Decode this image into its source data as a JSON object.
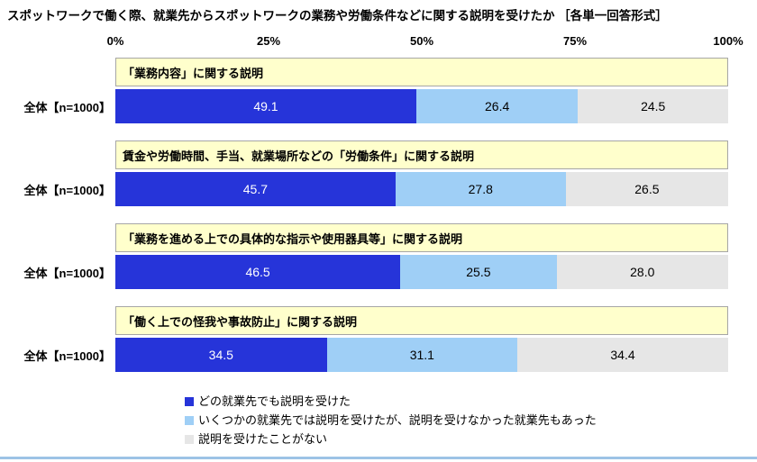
{
  "title": "スポットワークで働く際、就業先からスポットワークの業務や労働条件などに関する説明を受けたか ［各単一回答形式］",
  "chart_data": {
    "type": "bar",
    "orientation": "horizontal",
    "stacked": true,
    "xlim": [
      0,
      100
    ],
    "x_ticks": [
      "0%",
      "25%",
      "50%",
      "75%",
      "100%"
    ],
    "grid": false,
    "legend_position": "bottom-left",
    "band_color": "#FFFFCC",
    "row_label": "全体【n=1000】",
    "series": [
      {
        "name": "どの就業先でも説明を受けた",
        "color": "#2634D9",
        "text_color": "#FFFFFF"
      },
      {
        "name": "いくつかの就業先では説明を受けたが、説明を受けなかった就業先もあった",
        "color": "#9FCFF6",
        "text_color": "#000000"
      },
      {
        "name": "説明を受けたことがない",
        "color": "#E6E6E6",
        "text_color": "#000000"
      }
    ],
    "groups": [
      {
        "label": "「業務内容」に関する説明",
        "values": [
          49.1,
          26.4,
          24.5
        ],
        "value_labels": [
          "49.1",
          "26.4",
          "24.5"
        ]
      },
      {
        "label": "賃金や労働時間、手当、就業場所などの「労働条件」に関する説明",
        "values": [
          45.7,
          27.8,
          26.5
        ],
        "value_labels": [
          "45.7",
          "27.8",
          "26.5"
        ]
      },
      {
        "label": "「業務を進める上での具体的な指示や使用器具等」に関する説明",
        "values": [
          46.5,
          25.5,
          28.0
        ],
        "value_labels": [
          "46.5",
          "25.5",
          "28.0"
        ]
      },
      {
        "label": "「働く上での怪我や事故防止」に関する説明",
        "values": [
          34.5,
          31.1,
          34.4
        ],
        "value_labels": [
          "34.5",
          "31.1",
          "34.4"
        ]
      }
    ]
  }
}
